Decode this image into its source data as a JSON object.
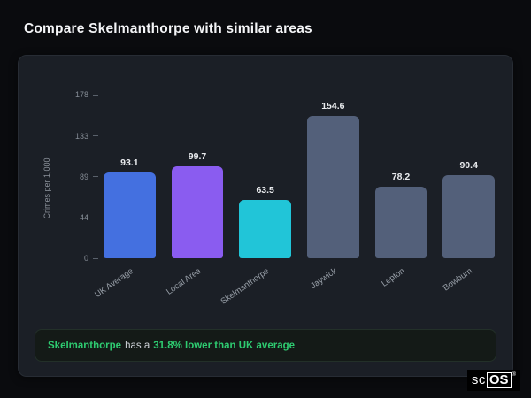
{
  "page": {
    "title": "Compare Skelmanthorpe with similar areas"
  },
  "chart_data": {
    "type": "bar",
    "title": "Compare Skelmanthorpe with similar areas",
    "ylabel": "Crimes per 1,000",
    "categories": [
      "UK Average",
      "Local Area",
      "Skelmanthorpe",
      "Jaywick",
      "Lepton",
      "Bowburn"
    ],
    "values": [
      93.1,
      99.7,
      63.5,
      154.6,
      78.2,
      90.4
    ],
    "bar_colors": [
      "#4470e0",
      "#8a5cf0",
      "#21c5d8",
      "#53607a",
      "#53607a",
      "#53607a"
    ],
    "yticks": [
      178,
      133,
      89,
      44,
      0
    ],
    "ylim": [
      0,
      178
    ],
    "grid": false,
    "legend": false
  },
  "note": {
    "area": "Skelmanthorpe",
    "connector": "has a",
    "stat": "31.8% lower than UK average",
    "accent_color": "#2ecc71"
  },
  "logo": {
    "prefix": "sc",
    "suffix": "OS",
    "reg": "®"
  }
}
